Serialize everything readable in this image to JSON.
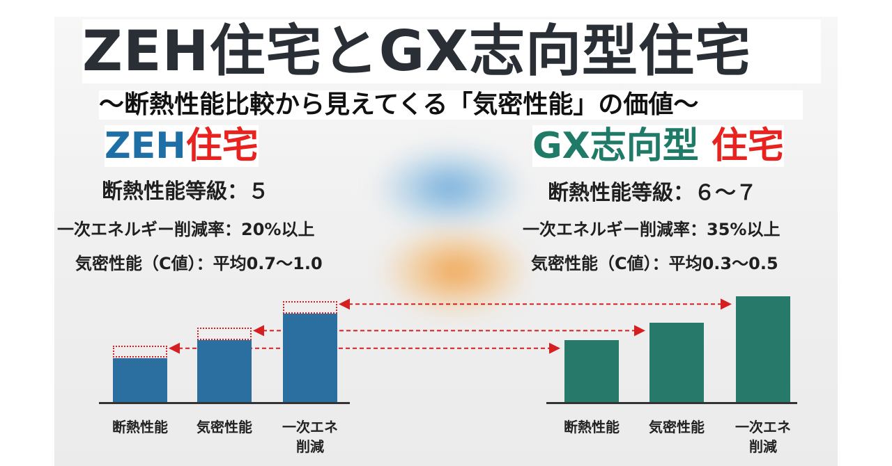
{
  "title": "ZEH住宅とGX志向型住宅",
  "subtitle": "～断熱性能比較から見えてくる「気密性能」の価値～",
  "zeh": {
    "title_main": "ZEH",
    "title_red": "住宅",
    "grade": "断熱性能等級：５",
    "energy": "一次エネルギー削減率：20%以上",
    "airtight": "気密性能（C値）：平均0.7～1.0"
  },
  "gx": {
    "title_main": "GX志向型",
    "title_red": "住宅",
    "grade": "断熱性能等級：６～７",
    "energy": "一次エネルギー削減率：35%以上",
    "airtight": "気密性能（C値）：平均0.3～0.5"
  },
  "colors": {
    "zeh_bar": "#2b6ea0",
    "gx_bar": "#27796a",
    "accent_red": "#e8231f",
    "arrow": "#d42020"
  },
  "chart_data": [
    {
      "type": "bar",
      "categories": [
        "断熱性能",
        "気密性能",
        "一次エネ\n削減"
      ],
      "category_lines": [
        [
          "断熱性能"
        ],
        [
          "気密性能"
        ],
        [
          "一次エネ",
          "削減"
        ]
      ],
      "values": [
        5,
        7,
        10
      ],
      "ylim": [
        0,
        12
      ],
      "bar_color": "#2b6ea0",
      "gap_to_gx": [
        2,
        2,
        2
      ],
      "note": ""
    },
    {
      "type": "bar",
      "categories": [
        "断熱性能",
        "気密性能",
        "一次エネ\n削減"
      ],
      "category_lines": [
        [
          "断熱性能"
        ],
        [
          "気密性能"
        ],
        [
          "一次エネ",
          "削減"
        ]
      ],
      "values": [
        7,
        9,
        12
      ],
      "ylim": [
        0,
        12
      ],
      "bar_color": "#27796a"
    }
  ]
}
